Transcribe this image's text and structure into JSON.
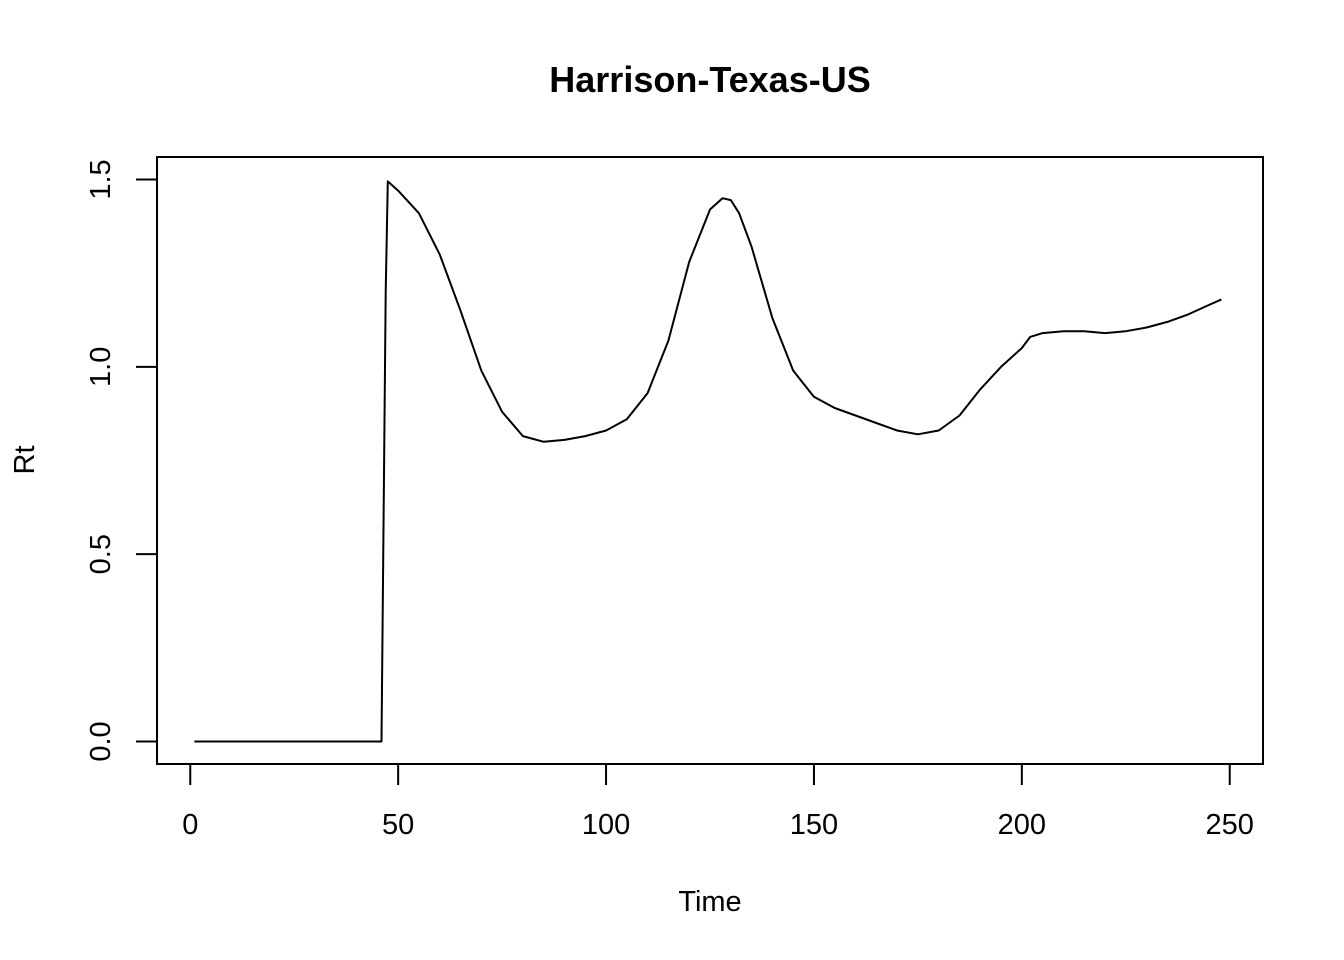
{
  "chart_data": {
    "type": "line",
    "title": "Harrison-Texas-US",
    "xlabel": "Time",
    "ylabel": "Rt",
    "xlim": [
      -8,
      258
    ],
    "ylim": [
      -0.06,
      1.56
    ],
    "xticks": [
      0,
      50,
      100,
      150,
      200,
      250
    ],
    "xtick_labels": [
      "0",
      "50",
      "100",
      "150",
      "200",
      "250"
    ],
    "yticks": [
      0.0,
      0.5,
      1.0,
      1.5
    ],
    "ytick_labels": [
      "0.0",
      "0.5",
      "1.0",
      "1.5"
    ],
    "grid": false,
    "legend": "none",
    "line_color": "#000000",
    "series": [
      {
        "x": [
          1,
          10,
          20,
          30,
          40,
          46,
          46.5,
          47,
          47.5,
          50,
          55,
          60,
          65,
          70,
          75,
          80,
          85,
          90,
          95,
          100,
          105,
          110,
          115,
          120,
          125,
          128,
          130,
          132,
          135,
          140,
          145,
          150,
          155,
          160,
          165,
          170,
          175,
          180,
          185,
          190,
          195,
          200,
          202,
          205,
          210,
          215,
          220,
          225,
          230,
          235,
          240,
          245,
          248
        ],
        "y": [
          0,
          0,
          0,
          0,
          0,
          0,
          0.6,
          1.2,
          1.495,
          1.47,
          1.41,
          1.3,
          1.15,
          0.99,
          0.88,
          0.815,
          0.8,
          0.805,
          0.815,
          0.83,
          0.86,
          0.93,
          1.07,
          1.28,
          1.42,
          1.45,
          1.445,
          1.41,
          1.32,
          1.13,
          0.99,
          0.92,
          0.89,
          0.87,
          0.85,
          0.83,
          0.82,
          0.83,
          0.87,
          0.94,
          1.0,
          1.05,
          1.08,
          1.09,
          1.095,
          1.095,
          1.09,
          1.095,
          1.105,
          1.12,
          1.14,
          1.165,
          1.18
        ]
      }
    ]
  }
}
